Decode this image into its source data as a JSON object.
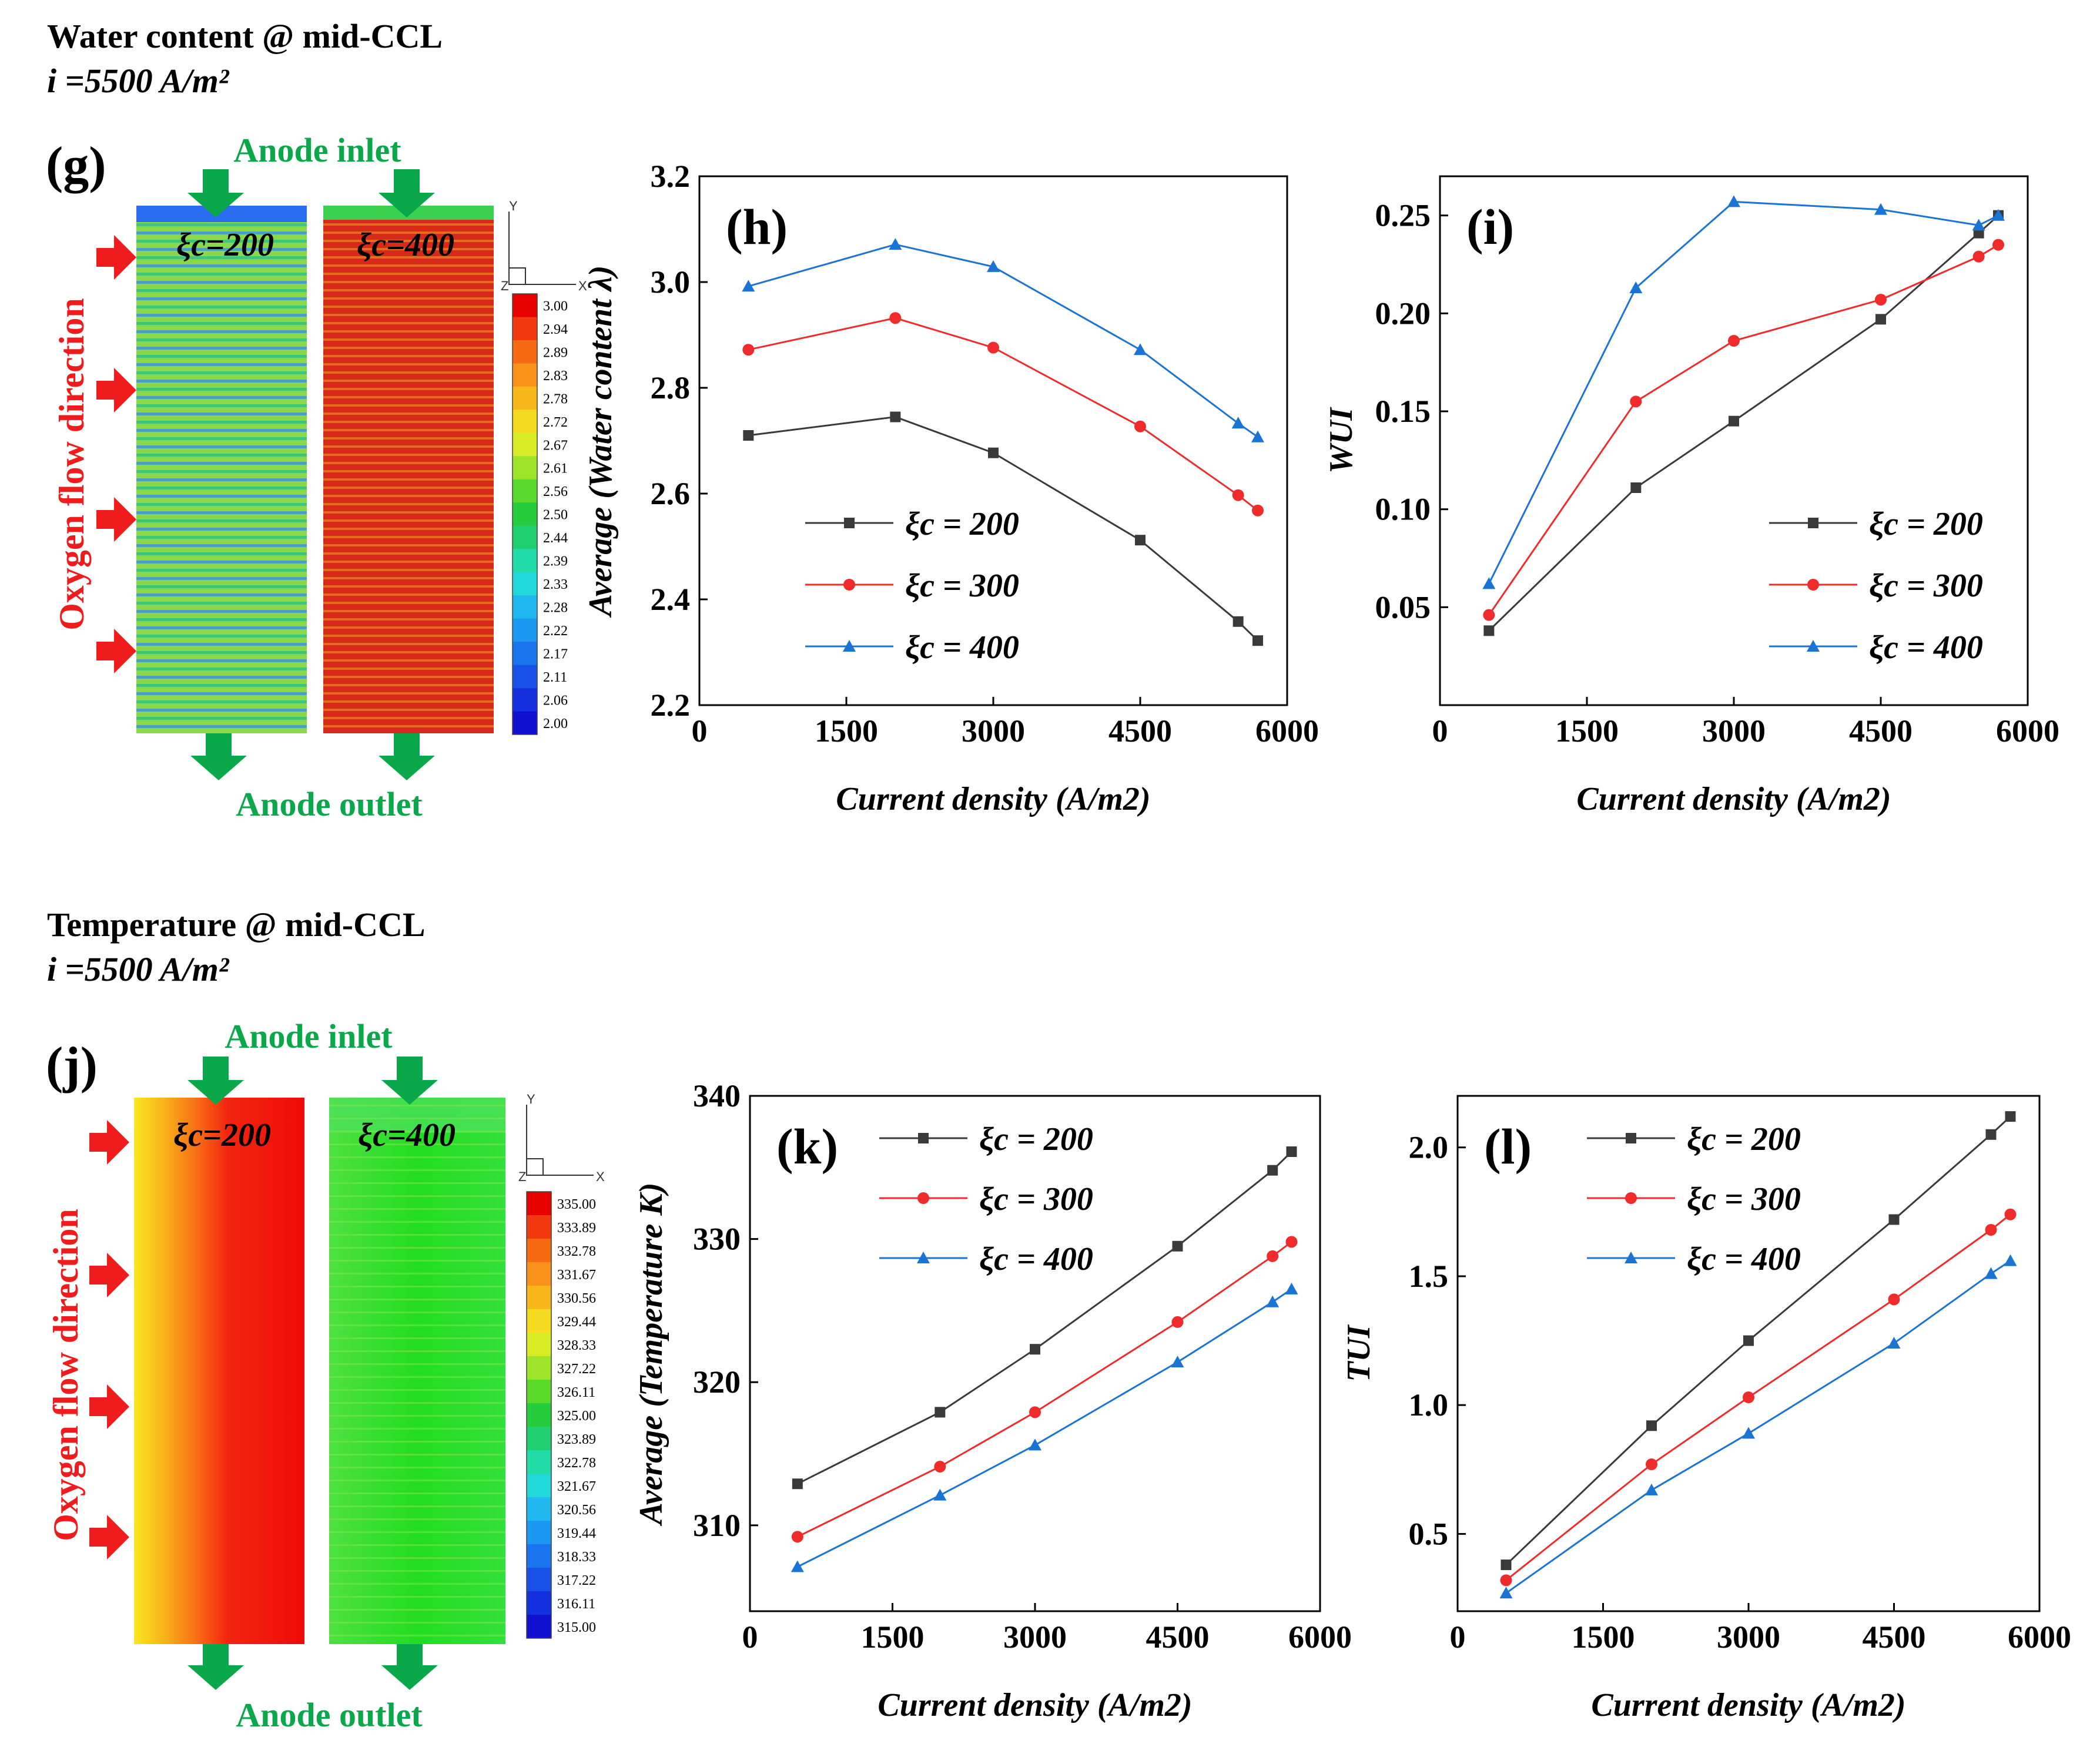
{
  "colors": {
    "s200": "#3a3a3a",
    "s300": "#ef2b2b",
    "s400": "#1a74d4",
    "green": "#0aa84a",
    "arrow_red": "#ee1c1c"
  },
  "headers": {
    "water_title": "Water content @ mid-CCL",
    "water_current": "i =5500 A/m²",
    "temp_title": "Temperature @ mid-CCL",
    "temp_current": "i =5500 A/m²"
  },
  "contour_maps": [
    {
      "panel": "(g)",
      "inlet": "Anode inlet",
      "outlet": "Anode outlet",
      "side_label": "Oxygen flow direction",
      "left_label": "ξc=200",
      "right_label": "ξc=400",
      "axis_y": "Y",
      "axis_x": "X",
      "axis_z": "Z",
      "legend_levels": [
        "3.00",
        "2.94",
        "2.89",
        "2.83",
        "2.78",
        "2.72",
        "2.67",
        "2.61",
        "2.56",
        "2.50",
        "2.44",
        "2.39",
        "2.33",
        "2.28",
        "2.22",
        "2.17",
        "2.11",
        "2.06",
        "2.00"
      ]
    },
    {
      "panel": "(j)",
      "inlet": "Anode inlet",
      "outlet": "Anode outlet",
      "side_label": "Oxygen flow direction",
      "left_label": "ξc=200",
      "right_label": "ξc=400",
      "axis_y": "Y",
      "axis_x": "X",
      "axis_z": "Z",
      "legend_levels": [
        "335.00",
        "333.89",
        "332.78",
        "331.67",
        "330.56",
        "329.44",
        "328.33",
        "327.22",
        "326.11",
        "325.00",
        "323.89",
        "322.78",
        "321.67",
        "320.56",
        "319.44",
        "318.33",
        "317.22",
        "316.11",
        "315.00"
      ]
    }
  ],
  "chart_data": [
    {
      "panel": "(h)",
      "type": "line",
      "xlabel": "Current density (A/m2)",
      "ylabel": "Average (Water content λ)",
      "xlim": [
        0,
        6000
      ],
      "ylim": [
        2.2,
        3.2
      ],
      "xticks": [
        "0",
        "1500",
        "3000",
        "4500",
        "6000"
      ],
      "yticks": [
        "2.2",
        "2.4",
        "2.6",
        "2.8",
        "3.0",
        "3.2"
      ],
      "legend_position": "lower-left",
      "x": [
        500,
        2000,
        3000,
        4500,
        5500,
        5700
      ],
      "series": [
        {
          "name": "ξc = 200",
          "marker": "square",
          "values": [
            2.71,
            2.745,
            2.677,
            2.512,
            2.358,
            2.322
          ]
        },
        {
          "name": "ξc = 300",
          "marker": "circle",
          "values": [
            2.872,
            2.932,
            2.876,
            2.727,
            2.597,
            2.568
          ]
        },
        {
          "name": "ξc = 400",
          "marker": "triangle",
          "values": [
            2.992,
            3.071,
            3.029,
            2.872,
            2.733,
            2.707
          ]
        }
      ]
    },
    {
      "panel": "(i)",
      "type": "line",
      "xlabel": "Current density (A/m2)",
      "ylabel": "WUI",
      "xlim": [
        0,
        6000
      ],
      "ylim": [
        0.0,
        0.27
      ],
      "xticks": [
        "0",
        "1500",
        "3000",
        "4500",
        "6000"
      ],
      "yticks": [
        "0.05",
        "0.10",
        "0.15",
        "0.20",
        "0.25"
      ],
      "legend_position": "lower-right",
      "x": [
        500,
        2000,
        3000,
        4500,
        5500,
        5700
      ],
      "series": [
        {
          "name": "ξc = 200",
          "marker": "square",
          "values": [
            0.038,
            0.111,
            0.145,
            0.197,
            0.241,
            0.25
          ]
        },
        {
          "name": "ξc = 300",
          "marker": "circle",
          "values": [
            0.046,
            0.155,
            0.186,
            0.207,
            0.229,
            0.235
          ]
        },
        {
          "name": "ξc = 400",
          "marker": "triangle",
          "values": [
            0.062,
            0.213,
            0.257,
            0.253,
            0.245,
            0.25
          ]
        }
      ]
    },
    {
      "panel": "(k)",
      "type": "line",
      "xlabel": "Current density (A/m2)",
      "ylabel": "Average (Temperature K)",
      "xlim": [
        0,
        6000
      ],
      "ylim": [
        304,
        340
      ],
      "xticks": [
        "0",
        "1500",
        "3000",
        "4500",
        "6000"
      ],
      "yticks": [
        "310",
        "320",
        "330",
        "340"
      ],
      "legend_position": "top-left",
      "x": [
        500,
        2000,
        3000,
        4500,
        5500,
        5700
      ],
      "series": [
        {
          "name": "ξc = 200",
          "marker": "square",
          "values": [
            312.9,
            317.9,
            322.3,
            329.5,
            334.8,
            336.1
          ]
        },
        {
          "name": "ξc = 300",
          "marker": "circle",
          "values": [
            309.2,
            314.1,
            317.9,
            324.2,
            328.8,
            329.8
          ]
        },
        {
          "name": "ξc = 400",
          "marker": "triangle",
          "values": [
            307.1,
            312.1,
            315.6,
            321.4,
            325.6,
            326.5
          ]
        }
      ]
    },
    {
      "panel": "(l)",
      "type": "line",
      "xlabel": "Current density (A/m2)",
      "ylabel": "TUI",
      "xlim": [
        0,
        6000
      ],
      "ylim": [
        0.2,
        2.2
      ],
      "xticks": [
        "0",
        "1500",
        "3000",
        "4500",
        "6000"
      ],
      "yticks": [
        "0.5",
        "1.0",
        "1.5",
        "2.0"
      ],
      "legend_position": "top-left",
      "x": [
        500,
        2000,
        3000,
        4500,
        5500,
        5700
      ],
      "series": [
        {
          "name": "ξc = 200",
          "marker": "square",
          "values": [
            0.38,
            0.92,
            1.25,
            1.72,
            2.05,
            2.12
          ]
        },
        {
          "name": "ξc = 300",
          "marker": "circle",
          "values": [
            0.32,
            0.77,
            1.03,
            1.41,
            1.68,
            1.74
          ]
        },
        {
          "name": "ξc = 400",
          "marker": "triangle",
          "values": [
            0.27,
            0.67,
            0.89,
            1.24,
            1.51,
            1.56
          ]
        }
      ]
    }
  ]
}
